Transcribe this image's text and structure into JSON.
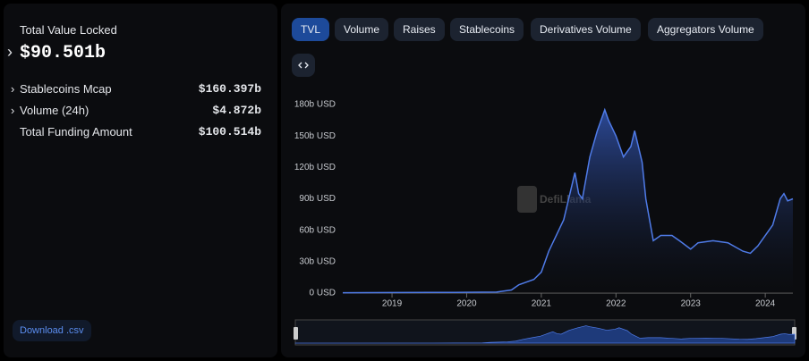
{
  "sidebar": {
    "title": "Total Value Locked",
    "value": "$90.501b",
    "rows": [
      {
        "label": "Stablecoins Mcap",
        "value": "$160.397b"
      },
      {
        "label": "Volume (24h)",
        "value": "$4.872b"
      },
      {
        "label": "Total Funding Amount",
        "value": "$100.514b"
      }
    ],
    "download": "Download .csv"
  },
  "tabs": [
    "TVL",
    "Volume",
    "Raises",
    "Stablecoins",
    "Derivatives Volume",
    "Aggregators Volume"
  ],
  "chart_data": {
    "type": "area",
    "watermark": "DefiLlama",
    "x": [
      2018.34,
      2019.0,
      2019.5,
      2020.0,
      2020.4,
      2020.6,
      2020.7,
      2020.9,
      2021.0,
      2021.1,
      2021.2,
      2021.3,
      2021.35,
      2021.4,
      2021.45,
      2021.5,
      2021.55,
      2021.65,
      2021.75,
      2021.85,
      2021.9,
      2022.0,
      2022.1,
      2022.2,
      2022.25,
      2022.35,
      2022.4,
      2022.45,
      2022.5,
      2022.6,
      2022.75,
      2022.85,
      2023.0,
      2023.1,
      2023.3,
      2023.5,
      2023.7,
      2023.8,
      2023.9,
      2024.0,
      2024.1,
      2024.2,
      2024.25,
      2024.3,
      2024.37
    ],
    "series": [
      {
        "name": "TVL",
        "color": "#4f7be8",
        "values": [
          0.3,
          0.5,
          0.6,
          0.7,
          1,
          3,
          8,
          13,
          20,
          40,
          55,
          70,
          85,
          100,
          115,
          95,
          90,
          130,
          155,
          175,
          165,
          150,
          130,
          140,
          155,
          125,
          90,
          70,
          50,
          55,
          55,
          50,
          42,
          48,
          50,
          48,
          40,
          38,
          45,
          55,
          65,
          90,
          95,
          88,
          90
        ]
      }
    ],
    "xlim": [
      2018.34,
      2024.37
    ],
    "xticks": [
      2019,
      2020,
      2021,
      2022,
      2023,
      2024
    ],
    "ylim": [
      0,
      180
    ],
    "yticks": [
      {
        "value": 0,
        "label": "0 USD"
      },
      {
        "value": 30,
        "label": "30b USD"
      },
      {
        "value": 60,
        "label": "60b USD"
      },
      {
        "value": 90,
        "label": "90b USD"
      },
      {
        "value": 120,
        "label": "120b USD"
      },
      {
        "value": 150,
        "label": "150b USD"
      },
      {
        "value": 180,
        "label": "180b USD"
      }
    ]
  }
}
